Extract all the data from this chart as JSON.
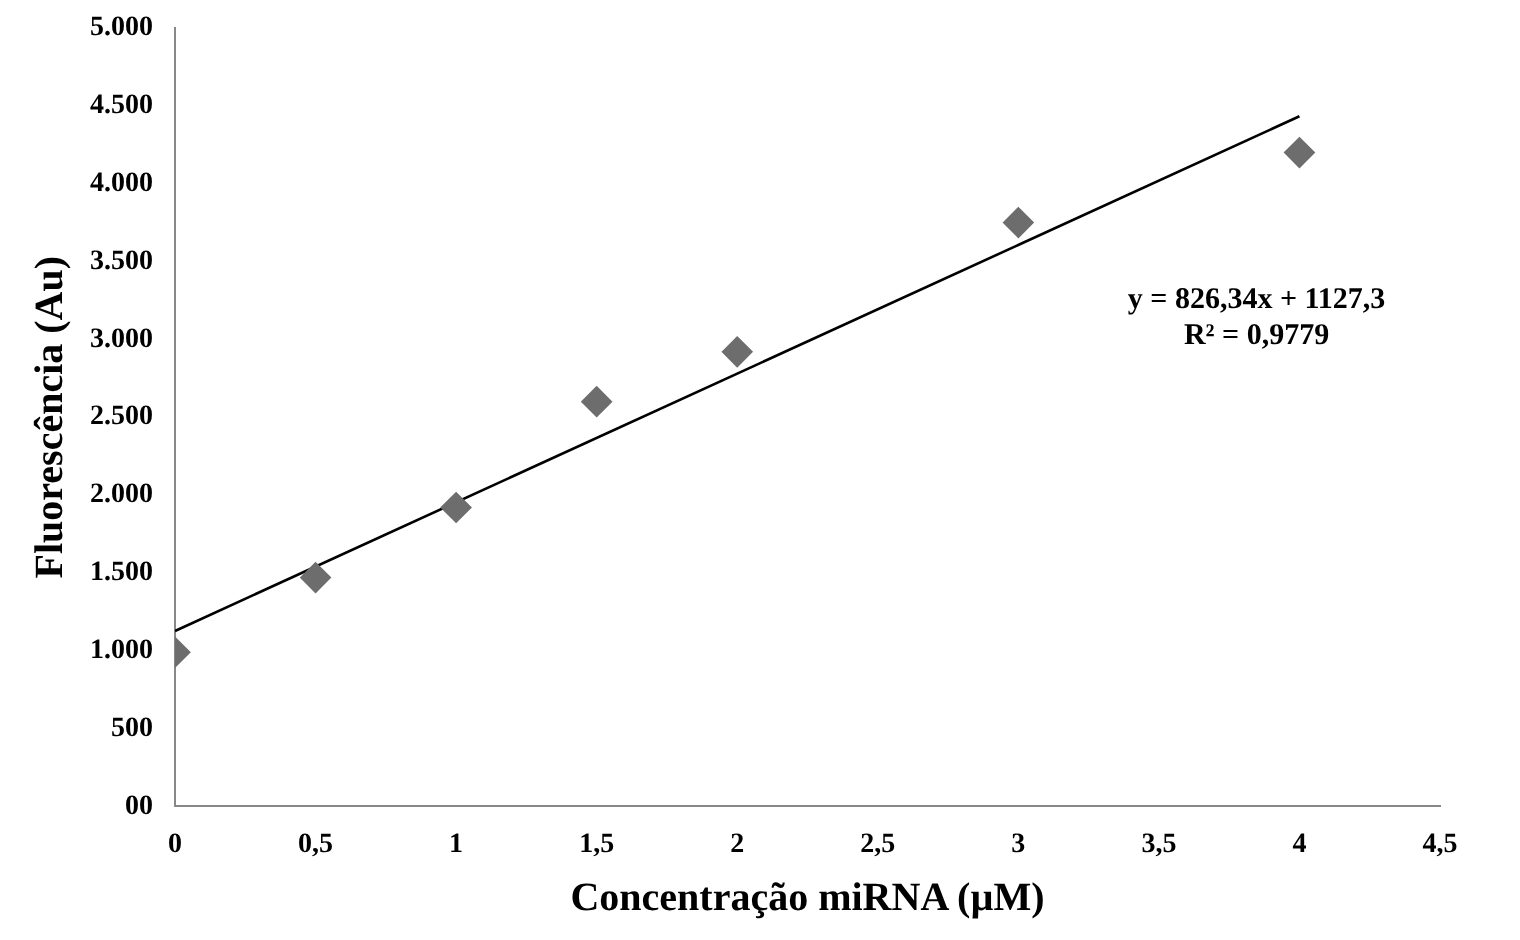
{
  "chart_data": {
    "type": "scatter",
    "xlabel": "Concentração miRNA (µM)",
    "ylabel": "Fluorescência (Au)",
    "series": [
      {
        "type": "scatter",
        "color": "#6d6d6d",
        "marker": "diamond",
        "x": [
          0,
          0.5,
          1,
          1.5,
          2,
          3,
          4
        ],
        "values": [
          990,
          1470,
          1920,
          2600,
          2920,
          3750,
          4200
        ]
      },
      {
        "type": "line",
        "color": "#000000",
        "marker": "none",
        "x": [
          0,
          4
        ],
        "values": [
          1127,
          4433
        ]
      }
    ],
    "xlim": [
      0,
      4.5
    ],
    "xticks": [
      0,
      {
        "value": 0.5,
        "label": "0,5"
      },
      1,
      {
        "value": 1.5,
        "label": "1,5"
      },
      2,
      {
        "value": 2.5,
        "label": "2,5"
      },
      3,
      {
        "value": 3.5,
        "label": "3,5"
      },
      4,
      {
        "value": 4.5,
        "label": "4,5"
      }
    ],
    "ylim": [
      0,
      5000
    ],
    "yticks": [
      {
        "value": 0,
        "label": "00"
      },
      500,
      {
        "value": 1000,
        "label": "1.000"
      },
      {
        "value": 1500,
        "label": "1.500"
      },
      {
        "value": 2000,
        "label": "2.000"
      },
      {
        "value": 2500,
        "label": "2.500"
      },
      {
        "value": 3000,
        "label": "3.000"
      },
      {
        "value": 3500,
        "label": "3.500"
      },
      {
        "value": 4000,
        "label": "4.000"
      },
      {
        "value": 4500,
        "label": "4.500"
      },
      {
        "value": 5000,
        "label": "5.000"
      }
    ],
    "annotations": [
      "y = 826,34x + 1127,3",
      "R² = 0,9779"
    ],
    "grid": false,
    "legend": false
  }
}
